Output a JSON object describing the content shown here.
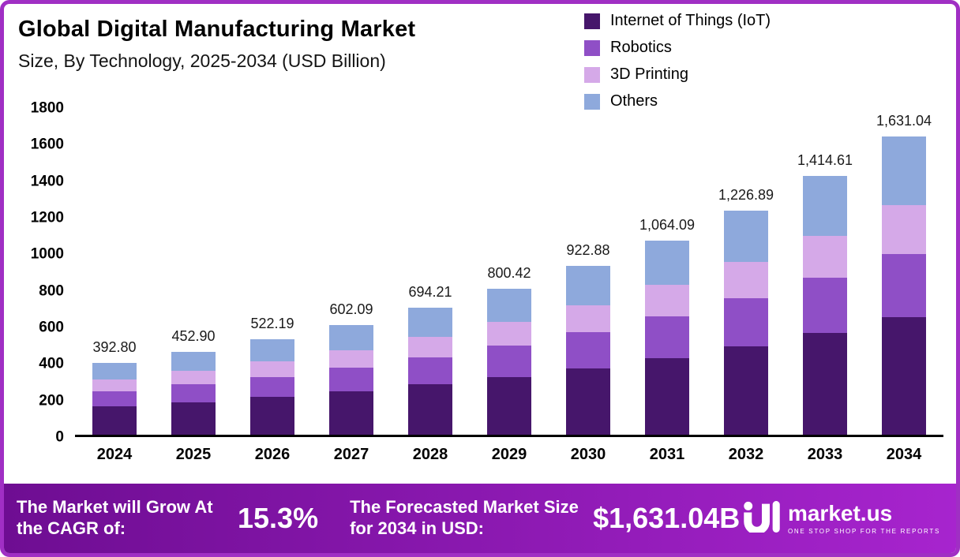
{
  "header": {
    "title": "Global Digital Manufacturing Market",
    "subtitle": "Size, By Technology, 2025-2034 (USD Billion)"
  },
  "colors": {
    "frame_border": "#a02fc4",
    "banner_gradient_start": "#6e0d92",
    "banner_gradient_end": "#a724ce",
    "axis": "#000000",
    "text": "#000000"
  },
  "chart_data": {
    "type": "bar",
    "stacked": true,
    "title": "Global Digital Manufacturing Market",
    "subtitle": "Size, By Technology, 2025-2034 (USD Billion)",
    "unit": "USD Billion",
    "categories": [
      "2024",
      "2025",
      "2026",
      "2027",
      "2028",
      "2029",
      "2030",
      "2031",
      "2032",
      "2033",
      "2034"
    ],
    "totals": [
      392.8,
      452.9,
      522.19,
      602.09,
      694.21,
      800.42,
      922.88,
      1064.09,
      1226.89,
      1414.61,
      1631.04
    ],
    "total_labels": [
      "392.80",
      "452.90",
      "522.19",
      "602.09",
      "694.21",
      "800.42",
      "922.88",
      "1,064.09",
      "1,226.89",
      "1,414.61",
      "1,631.04"
    ],
    "series": [
      {
        "key": "iot",
        "name": "Internet of Things (IoT)",
        "color": "#46166b",
        "values": [
          155.2,
          178.9,
          206.3,
          237.8,
          274.2,
          316.2,
          364.5,
          420.3,
          484.6,
          558.8,
          644.3
        ]
      },
      {
        "key": "robotics",
        "name": "Robotics",
        "color": "#8f4fc6",
        "values": [
          83.3,
          96.0,
          110.7,
          127.6,
          147.2,
          169.7,
          195.7,
          225.6,
          260.1,
          299.9,
          345.8
        ]
      },
      {
        "key": "3d-printing",
        "name": "3D Printing",
        "color": "#d5a9e8",
        "values": [
          63.6,
          73.4,
          84.6,
          97.5,
          112.5,
          129.7,
          149.5,
          172.4,
          198.8,
          229.2,
          264.2
        ]
      },
      {
        "key": "others",
        "name": "Others",
        "color": "#8ea9dc",
        "values": [
          90.7,
          104.6,
          120.6,
          139.1,
          160.4,
          184.9,
          213.2,
          245.8,
          283.4,
          326.8,
          376.8
        ]
      }
    ],
    "ylim": [
      0,
      1800
    ],
    "ytick_step": 200,
    "grid": false,
    "legend_position": "top-right"
  },
  "banner": {
    "cagr_label": "The Market will Grow At the CAGR of:",
    "cagr_value": "15.3%",
    "forecast_label": "The Forecasted Market Size for 2034 in USD:",
    "forecast_value": "$1,631.04B",
    "brand": "market.us",
    "brand_tagline": "ONE STOP SHOP FOR THE REPORTS"
  }
}
